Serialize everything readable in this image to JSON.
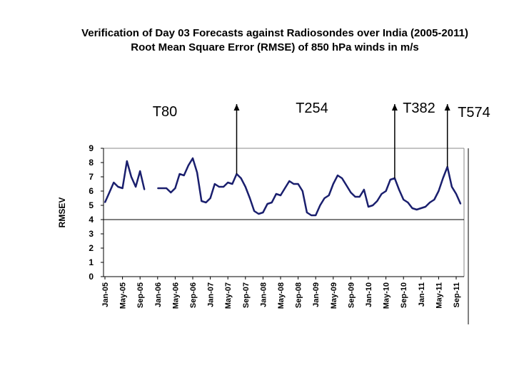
{
  "title_line1": "Verification of Day 03 Forecasts against Radiosondes over India (2005-2011)",
  "title_line2": "Root Mean Square Error (RMSE) of 850 hPa winds in m/s",
  "chart_data": {
    "type": "line",
    "ylabel": "RMSEV",
    "ylim": [
      0,
      9
    ],
    "yticks": [
      0,
      1,
      2,
      3,
      4,
      5,
      6,
      7,
      8,
      9
    ],
    "reference_line": 4,
    "categories": [
      "Jan-05",
      "May-05",
      "Sep-05",
      "Jan-06",
      "May-06",
      "Sep-06",
      "Jan-07",
      "May-07",
      "Sep-07",
      "Jan-08",
      "May-08",
      "Sep-08",
      "Jan-09",
      "May-09",
      "Sep-09",
      "Jan-10",
      "May-10",
      "Sep-10",
      "Jan-11",
      "May-11",
      "Sep-11"
    ],
    "segments": [
      [
        [
          0,
          5.2
        ],
        [
          1,
          5.9
        ],
        [
          2,
          6.6
        ],
        [
          3,
          6.3
        ],
        [
          4,
          6.2
        ],
        [
          5,
          8.1
        ],
        [
          6,
          7.0
        ],
        [
          7,
          6.3
        ],
        [
          8,
          7.4
        ],
        [
          9,
          6.1
        ]
      ],
      [
        [
          12,
          6.2
        ],
        [
          13,
          6.2
        ],
        [
          14,
          6.2
        ],
        [
          15,
          5.9
        ],
        [
          16,
          6.2
        ],
        [
          17,
          7.2
        ],
        [
          18,
          7.1
        ],
        [
          19,
          7.8
        ],
        [
          20,
          8.3
        ],
        [
          21,
          7.3
        ],
        [
          22,
          5.3
        ],
        [
          23,
          5.2
        ],
        [
          24,
          5.5
        ],
        [
          25,
          6.5
        ],
        [
          26,
          6.3
        ],
        [
          27,
          6.3
        ],
        [
          28,
          6.6
        ],
        [
          29,
          6.5
        ],
        [
          30,
          7.2
        ],
        [
          31,
          6.9
        ],
        [
          32,
          6.3
        ],
        [
          33,
          5.5
        ],
        [
          34,
          4.6
        ],
        [
          35,
          4.4
        ],
        [
          36,
          4.5
        ],
        [
          37,
          5.1
        ],
        [
          38,
          5.2
        ],
        [
          39,
          5.8
        ],
        [
          40,
          5.7
        ],
        [
          41,
          6.2
        ],
        [
          42,
          6.7
        ],
        [
          43,
          6.5
        ],
        [
          44,
          6.5
        ],
        [
          45,
          6.0
        ],
        [
          46,
          4.5
        ],
        [
          47,
          4.3
        ],
        [
          48,
          4.3
        ],
        [
          49,
          5.0
        ],
        [
          50,
          5.5
        ],
        [
          51,
          5.7
        ],
        [
          52,
          6.5
        ],
        [
          53,
          7.1
        ],
        [
          54,
          6.9
        ],
        [
          55,
          6.4
        ],
        [
          56,
          5.9
        ],
        [
          57,
          5.6
        ],
        [
          58,
          5.6
        ],
        [
          59,
          6.1
        ],
        [
          60,
          4.9
        ],
        [
          61,
          5.0
        ],
        [
          62,
          5.3
        ],
        [
          63,
          5.8
        ],
        [
          64,
          6.0
        ],
        [
          65,
          6.8
        ],
        [
          66,
          6.9
        ],
        [
          67,
          6.1
        ],
        [
          68,
          5.4
        ],
        [
          69,
          5.2
        ],
        [
          70,
          4.8
        ],
        [
          71,
          4.7
        ],
        [
          72,
          4.8
        ],
        [
          73,
          4.9
        ],
        [
          74,
          5.2
        ],
        [
          75,
          5.4
        ],
        [
          76,
          6.0
        ],
        [
          77,
          6.9
        ],
        [
          78,
          7.7
        ],
        [
          79,
          6.3
        ],
        [
          80,
          5.8
        ],
        [
          81,
          5.1
        ]
      ]
    ],
    "series_color": "#1a1f6e",
    "annotations": [
      {
        "label": "T80",
        "arrow_x": null
      },
      {
        "label": "T254",
        "arrow_x": 30
      },
      {
        "label": "T382",
        "arrow_x": 66
      },
      {
        "label": "T574",
        "arrow_x": 78
      }
    ]
  }
}
